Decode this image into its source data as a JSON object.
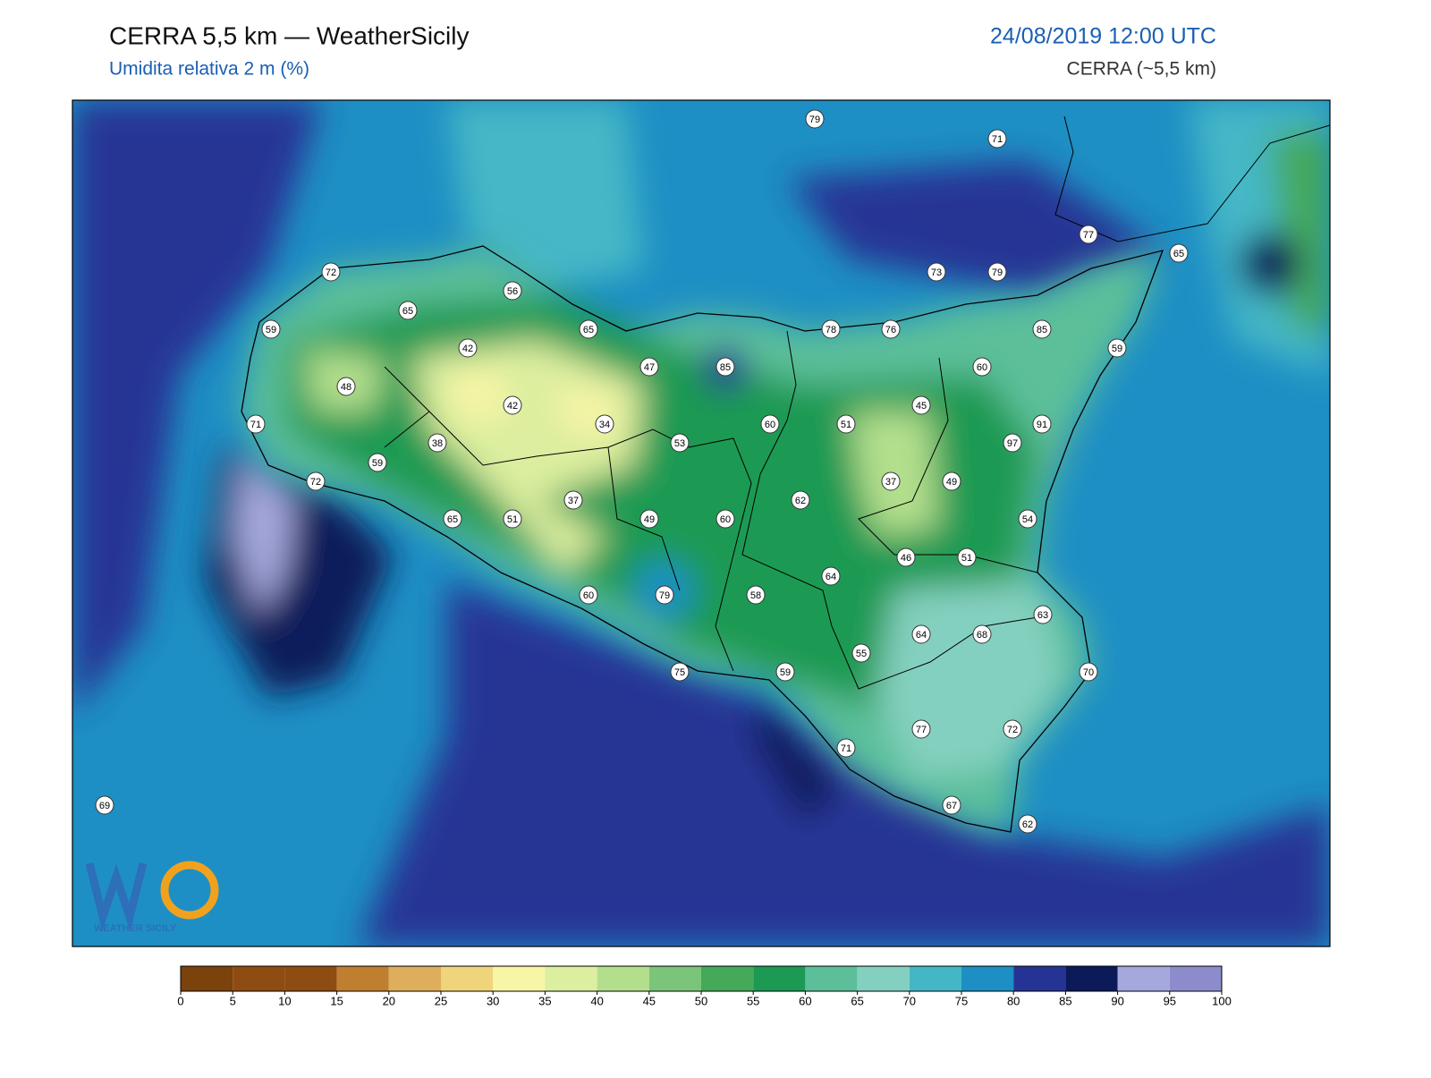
{
  "header": {
    "title": "CERRA 5,5 km — WeatherSicily",
    "subtitle": "Umidita relativa 2 m (%)",
    "datetime": "24/08/2019 12:00 UTC",
    "model": "CERRA (~5,5 km)"
  },
  "logo": {
    "text": "WEATHER SICILY"
  },
  "stations": [
    79,
    71,
    77,
    65,
    73,
    79,
    72,
    56,
    65,
    65,
    78,
    76,
    85,
    59,
    42,
    59,
    47,
    85,
    60,
    48,
    42,
    45,
    71,
    34,
    60,
    51,
    91,
    97,
    38,
    53,
    59,
    72,
    37,
    49,
    37,
    62,
    65,
    51,
    49,
    60,
    54,
    46,
    51,
    64,
    79,
    58,
    60,
    63,
    64,
    68,
    55,
    75,
    59,
    70,
    77,
    72,
    71,
    67,
    62,
    69
  ],
  "colorbar": {
    "ticks": [
      0,
      5,
      10,
      15,
      20,
      25,
      30,
      35,
      40,
      45,
      50,
      55,
      60,
      65,
      70,
      75,
      80,
      85,
      90,
      95,
      100
    ],
    "colors": [
      "#7b420b",
      "#8f4c12",
      "#8f4c12",
      "#c07f30",
      "#dfae5c",
      "#f0d47c",
      "#f7f5a6",
      "#dcee9f",
      "#b3df8d",
      "#7bc57a",
      "#45a95a",
      "#1c9a53",
      "#5cbf9a",
      "#84d0c0",
      "#44b7c6",
      "#1e8fc4",
      "#253494",
      "#0c1a5a",
      "#a4a8dc",
      "#8c8ccc"
    ]
  }
}
